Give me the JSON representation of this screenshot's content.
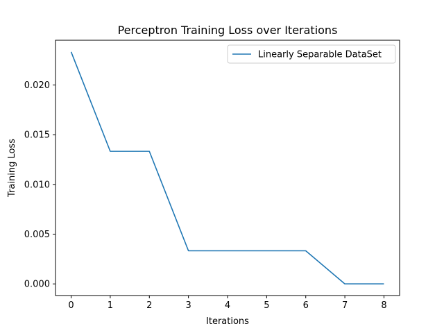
{
  "chart_data": {
    "type": "line",
    "title": "Perceptron Training Loss over Iterations",
    "xlabel": "Iterations",
    "ylabel": "Training Loss",
    "x": [
      0,
      1,
      2,
      3,
      4,
      5,
      6,
      7,
      8
    ],
    "series": [
      {
        "name": "Linearly Separable DataSet",
        "values": [
          0.02333,
          0.01333,
          0.01333,
          0.00333,
          0.00333,
          0.00333,
          0.00333,
          0.0,
          0.0
        ],
        "color": "#1f77b4"
      }
    ],
    "xticks": [
      "0",
      "1",
      "2",
      "3",
      "4",
      "5",
      "6",
      "7",
      "8"
    ],
    "yticks": [
      "0.000",
      "0.005",
      "0.010",
      "0.015",
      "0.020"
    ],
    "xlim": [
      -0.4,
      8.4
    ],
    "ylim": [
      -0.00117,
      0.0245
    ],
    "grid": false,
    "legend_position": "top-right"
  }
}
